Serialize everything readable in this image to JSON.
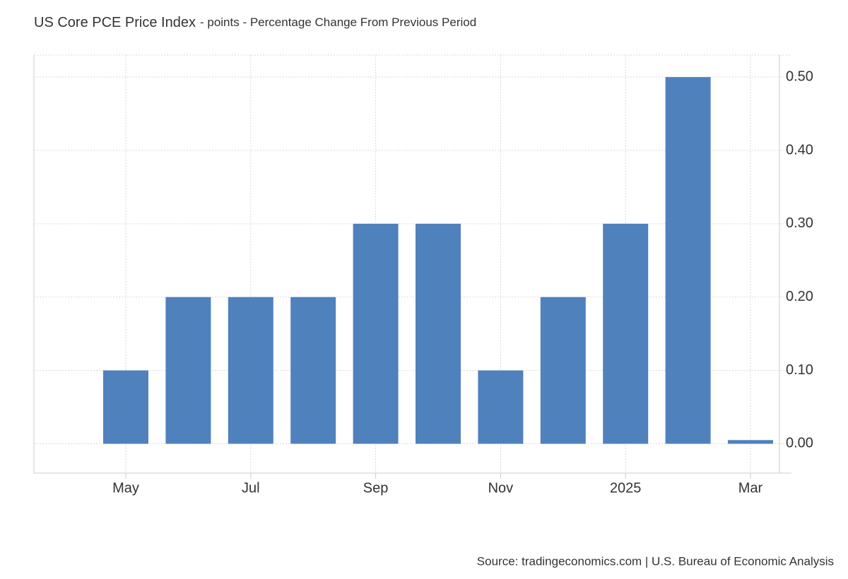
{
  "chart_data": {
    "type": "bar",
    "title": "US Core PCE Price Index",
    "subtitle": "- points - Percentage Change From Previous Period",
    "source": "Source: tradingeconomics.com | U.S. Bureau of Economic Analysis",
    "categories": [
      "May",
      null,
      "Jul",
      null,
      "Sep",
      null,
      "Nov",
      null,
      "2025",
      null,
      "Mar"
    ],
    "values": [
      0.1,
      0.2,
      0.2,
      0.2,
      0.3,
      0.3,
      0.1,
      0.2,
      0.3,
      0.5,
      0.005
    ],
    "color": "#4f81bd",
    "ylim": [
      -0.04,
      0.53
    ],
    "yticks": [
      {
        "value": 0,
        "label": "0.00"
      },
      {
        "value": 0.1,
        "label": "0.10"
      },
      {
        "value": 0.2,
        "label": "0.20"
      },
      {
        "value": 0.3,
        "label": "0.30"
      },
      {
        "value": 0.4,
        "label": "0.40"
      },
      {
        "value": 0.5,
        "label": "0.50"
      }
    ],
    "grid": true
  }
}
